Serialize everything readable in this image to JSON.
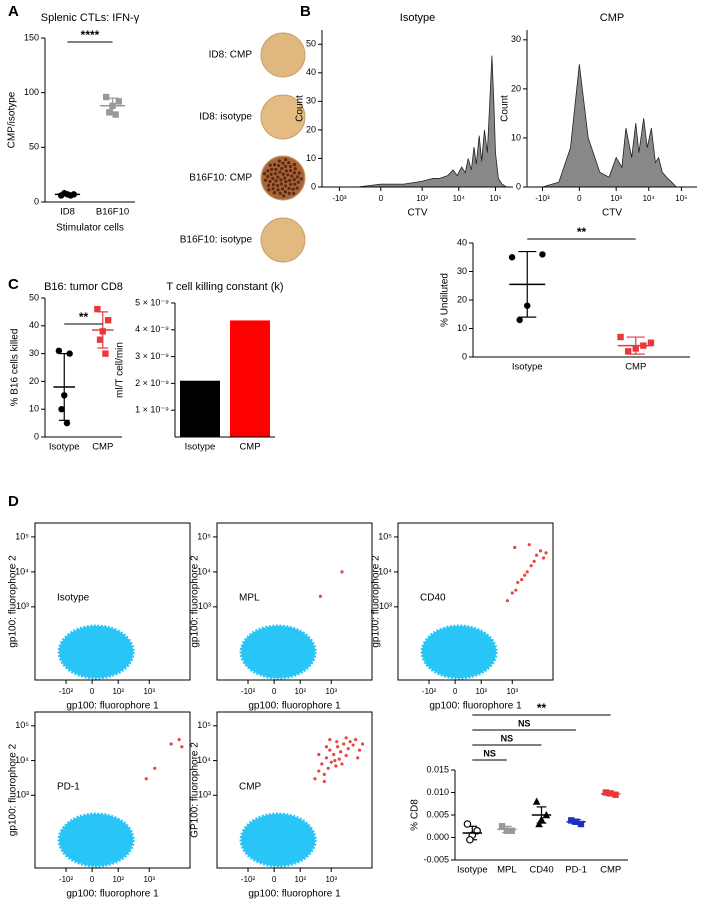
{
  "panel_labels": [
    "A",
    "B",
    "C",
    "D"
  ],
  "wells": [
    "ID8: CMP",
    "ID8: isotype",
    "B16F10: CMP",
    "B16F10: isotype"
  ],
  "chart_data": [
    {
      "type": "strip",
      "title": "Splenic CTLs: IFN-γ",
      "ylabel": "CMP/isotype",
      "xlabel": "Stimulator cells",
      "categories": [
        "ID8",
        "B16F10"
      ],
      "groups": [
        {
          "values": [
            6,
            7,
            7,
            8,
            6
          ],
          "mean": 7,
          "sd": 1,
          "color": "#000000",
          "marker": "circle"
        },
        {
          "values": [
            96,
            92,
            88,
            82,
            80
          ],
          "mean": 88,
          "sd": 7,
          "color": "#999999",
          "marker": "square"
        }
      ],
      "ylim": [
        0,
        150
      ],
      "yticks": [
        0,
        50,
        100,
        150
      ],
      "annotations": [
        {
          "text": "****",
          "between": [
            "ID8",
            "B16F10"
          ]
        }
      ]
    },
    {
      "type": "area",
      "title": "Isotype",
      "ylabel": "Count",
      "xlabel": "CTV",
      "color": "#888888",
      "xscale": "asinh",
      "x": [
        -3000,
        -1000,
        -300,
        0,
        300,
        1000,
        2000,
        3000,
        5000,
        7000,
        9000,
        12000,
        15000,
        18000,
        22000,
        26000,
        30000,
        36000,
        42000,
        50000,
        60000,
        70000,
        80000,
        90000,
        100000,
        120000,
        150000,
        200000,
        300000
      ],
      "values": [
        0,
        0,
        0,
        1,
        1,
        2,
        3,
        3,
        4,
        6,
        4,
        7,
        5,
        10,
        6,
        14,
        8,
        18,
        9,
        20,
        12,
        30,
        46,
        30,
        12,
        3,
        1,
        0,
        0
      ],
      "xlim": [
        -3000,
        300000
      ],
      "xticks": [
        {
          "value": -1000,
          "label": "-10³"
        },
        0,
        {
          "value": 1000,
          "label": "10³"
        },
        {
          "value": 10000,
          "label": "10⁴"
        },
        {
          "value": 100000,
          "label": "10⁵"
        }
      ],
      "ylim": [
        0,
        55
      ],
      "yticks": [
        0,
        10,
        20,
        30,
        40,
        50
      ]
    },
    {
      "type": "area",
      "title": "CMP",
      "ylabel": "Count",
      "xlabel": "CTV",
      "color": "#888888",
      "xscale": "asinh",
      "x": [
        -3000,
        -1000,
        -300,
        -100,
        0,
        100,
        300,
        600,
        1000,
        1500,
        2000,
        3000,
        4000,
        5000,
        7000,
        9000,
        12000,
        16000,
        20000,
        26000,
        35000,
        50000,
        70000,
        100000,
        300000
      ],
      "values": [
        0,
        0,
        1,
        8,
        25,
        10,
        3,
        2,
        6,
        4,
        12,
        6,
        13,
        7,
        14,
        8,
        12,
        5,
        6,
        3,
        2,
        1,
        0,
        0,
        0
      ],
      "xlim": [
        -3000,
        300000
      ],
      "xticks": [
        {
          "value": -1000,
          "label": "-10³"
        },
        0,
        {
          "value": 1000,
          "label": "10³"
        },
        {
          "value": 10000,
          "label": "10⁴"
        },
        {
          "value": 100000,
          "label": "10⁵"
        }
      ],
      "ylim": [
        0,
        32
      ],
      "yticks": [
        0,
        10,
        20,
        30
      ]
    },
    {
      "type": "strip",
      "ylabel": "% Undiluted",
      "categories": [
        "Isotype",
        "CMP"
      ],
      "groups": [
        {
          "values": [
            35,
            36,
            18,
            13
          ],
          "mean": 25.5,
          "sd": 11.5,
          "color": "#000000",
          "marker": "circle"
        },
        {
          "values": [
            7,
            5,
            3,
            2,
            4
          ],
          "mean": 4,
          "sd": 3,
          "color": "#e8383d",
          "marker": "square"
        }
      ],
      "ylim": [
        0,
        40
      ],
      "yticks": [
        0,
        10,
        20,
        30,
        40
      ],
      "annotations": [
        {
          "text": "**",
          "between": [
            "Isotype",
            "CMP"
          ]
        }
      ]
    },
    {
      "type": "strip",
      "title": "B16: tumor CD8",
      "ylabel": "% B16 cells killed",
      "categories": [
        "Isotype",
        "CMP"
      ],
      "groups": [
        {
          "values": [
            31,
            30,
            15,
            10,
            5
          ],
          "mean": 18,
          "sd": 12,
          "color": "#000000",
          "marker": "circle"
        },
        {
          "values": [
            46,
            42,
            38,
            35,
            30
          ],
          "mean": 38.5,
          "sd": 6.5,
          "color": "#e8383d",
          "marker": "square"
        }
      ],
      "ylim": [
        0,
        50
      ],
      "yticks": [
        0,
        10,
        20,
        30,
        40,
        50
      ],
      "annotations": [
        {
          "text": "**",
          "between": [
            "Isotype",
            "CMP"
          ]
        }
      ]
    },
    {
      "type": "bar",
      "title": "T cell killing constant (k)",
      "ylabel": "ml/T cell/min",
      "categories": [
        "Isotype",
        "CMP"
      ],
      "values": [
        2.1e-09,
        4.35e-09
      ],
      "colors": [
        "#000000",
        "#ff0000"
      ],
      "ylim": [
        0,
        5e-09
      ],
      "yticks": [
        {
          "value": 1e-09,
          "label": "1 × 10⁻⁹"
        },
        {
          "value": 2e-09,
          "label": "2 × 10⁻⁹"
        },
        {
          "value": 3e-09,
          "label": "3 × 10⁻⁹"
        },
        {
          "value": 4e-09,
          "label": "4 × 10⁻⁹"
        },
        {
          "value": 5e-09,
          "label": "5 × 10⁻⁹"
        }
      ]
    },
    {
      "type": "scatter",
      "annotation": "Isotype",
      "xlabel": "gp100: fluorophore 1",
      "ylabel": "gp100: fluorophore 2",
      "x": [],
      "values": [],
      "color": "#e8473f",
      "population_color": "#29c5f6",
      "xscale": "asinh",
      "yscale": "asinh",
      "xlim": [
        -1000,
        20000
      ],
      "ylim": [
        -300,
        250000
      ],
      "xticks": [
        {
          "value": -100,
          "label": "-10²"
        },
        0,
        {
          "value": 100,
          "label": "10²"
        },
        {
          "value": 1000,
          "label": "10³"
        }
      ],
      "yticks": [
        {
          "value": 1000,
          "label": "10³"
        },
        {
          "value": 10000,
          "label": "10⁴"
        },
        {
          "value": 100000,
          "label": "10⁵"
        }
      ]
    },
    {
      "type": "scatter",
      "annotation": "MPL",
      "xlabel": "gp100: fluorophore 1",
      "ylabel": "gp100: fluorophore 2",
      "x": [
        450,
        2200
      ],
      "values": [
        2000,
        10000
      ],
      "color": "#e8473f",
      "population_color": "#29c5f6",
      "xscale": "asinh",
      "yscale": "asinh",
      "xlim": [
        -1000,
        20000
      ],
      "ylim": [
        -300,
        250000
      ],
      "xticks": [
        {
          "value": -100,
          "label": "-10²"
        },
        0,
        {
          "value": 100,
          "label": "10²"
        },
        {
          "value": 1000,
          "label": "10³"
        }
      ],
      "yticks": [
        {
          "value": 1000,
          "label": "10³"
        },
        {
          "value": 10000,
          "label": "10⁴"
        },
        {
          "value": 100000,
          "label": "10⁵"
        }
      ]
    },
    {
      "type": "scatter",
      "annotation": "CD40",
      "xlabel": "gp100: fluorophore 1",
      "ylabel": "gp100: fluorophore 2",
      "x": [
        700,
        1000,
        1300,
        1500,
        2000,
        2500,
        3000,
        4000,
        5000,
        6000,
        8000,
        10000,
        12000,
        1200,
        3500
      ],
      "values": [
        1500,
        2500,
        3000,
        5000,
        6000,
        8000,
        10000,
        15000,
        20000,
        30000,
        40000,
        25000,
        35000,
        50000,
        60000
      ],
      "color": "#e8473f",
      "population_color": "#29c5f6",
      "xscale": "asinh",
      "yscale": "asinh",
      "xlim": [
        -1000,
        20000
      ],
      "ylim": [
        -300,
        250000
      ],
      "xticks": [
        {
          "value": -100,
          "label": "-10²"
        },
        0,
        {
          "value": 100,
          "label": "10²"
        },
        {
          "value": 1000,
          "label": "10³"
        }
      ],
      "yticks": [
        {
          "value": 1000,
          "label": "10³"
        },
        {
          "value": 10000,
          "label": "10⁴"
        },
        {
          "value": 100000,
          "label": "10⁵"
        }
      ]
    },
    {
      "type": "scatter",
      "annotation": "PD-1",
      "xlabel": "gp100: fluorophore 1",
      "ylabel": "gp100: fluorophore 2",
      "x": [
        800,
        1500,
        5000,
        9000,
        11000
      ],
      "values": [
        3000,
        6000,
        30000,
        40000,
        25000
      ],
      "color": "#e8473f",
      "population_color": "#29c5f6",
      "xscale": "asinh",
      "yscale": "asinh",
      "xlim": [
        -1000,
        20000
      ],
      "ylim": [
        -300,
        250000
      ],
      "xticks": [
        {
          "value": -100,
          "label": "-10²"
        },
        0,
        {
          "value": 100,
          "label": "10²"
        },
        {
          "value": 1000,
          "label": "10³"
        }
      ],
      "yticks": [
        {
          "value": 1000,
          "label": "10³"
        },
        {
          "value": 10000,
          "label": "10⁴"
        },
        {
          "value": 100000,
          "label": "10⁵"
        }
      ]
    },
    {
      "type": "scatter",
      "annotation": "CMP",
      "xlabel": "gp100: fluorophore 1",
      "ylabel": "GP100: fluorophore 2",
      "x": [
        300,
        400,
        500,
        600,
        700,
        800,
        900,
        1000,
        1200,
        1400,
        1600,
        1800,
        2000,
        2500,
        3000,
        3500,
        4000,
        5000,
        6000,
        8000,
        10000,
        400,
        600,
        900,
        1300,
        2200,
        3000,
        700,
        1500,
        7000
      ],
      "values": [
        3000,
        5000,
        8000,
        4000,
        12000,
        6000,
        20000,
        9000,
        15000,
        7000,
        25000,
        11000,
        18000,
        30000,
        14000,
        22000,
        35000,
        28000,
        40000,
        20000,
        30000,
        15000,
        2500,
        40000,
        10000,
        8000,
        45000,
        25000,
        35000,
        12000
      ],
      "color": "#e8473f",
      "population_color": "#29c5f6",
      "xscale": "asinh",
      "yscale": "asinh",
      "xlim": [
        -1000,
        20000
      ],
      "ylim": [
        -300,
        250000
      ],
      "xticks": [
        {
          "value": -100,
          "label": "-10²"
        },
        0,
        {
          "value": 100,
          "label": "10²"
        },
        {
          "value": 1000,
          "label": "10³"
        }
      ],
      "yticks": [
        {
          "value": 1000,
          "label": "10³"
        },
        {
          "value": 10000,
          "label": "10⁴"
        },
        {
          "value": 100000,
          "label": "10⁵"
        }
      ]
    },
    {
      "type": "strip",
      "ylabel": "% CD8",
      "categories": [
        "Isotype",
        "MPL",
        "CD40",
        "PD-1",
        "CMP"
      ],
      "groups": [
        {
          "values": [
            0.003,
            0.0015,
            0.0005,
            -0.0005
          ],
          "mean": 0.001,
          "sd": 0.0015,
          "color": "#000000",
          "marker": "open-circle"
        },
        {
          "values": [
            0.0025,
            0.0015,
            0.0015
          ],
          "mean": 0.0018,
          "sd": 0.0007,
          "color": "#999999",
          "marker": "square"
        },
        {
          "values": [
            0.008,
            0.005,
            0.004,
            0.003
          ],
          "mean": 0.005,
          "sd": 0.0018,
          "color": "#000000",
          "marker": "triangle"
        },
        {
          "values": [
            0.0038,
            0.003,
            0.0035
          ],
          "mean": 0.0035,
          "sd": 0.0005,
          "color": "#1f2fbf",
          "marker": "square"
        },
        {
          "values": [
            0.01,
            0.0095,
            0.0098
          ],
          "mean": 0.0097,
          "sd": 0.0004,
          "color": "#e8383d",
          "marker": "square"
        }
      ],
      "ylim": [
        -0.005,
        0.015
      ],
      "yticks": [
        -0.005,
        {
          "value": 0,
          "label": "0.000"
        },
        0.005,
        {
          "value": 0.01,
          "label": "0.010"
        },
        0.015
      ],
      "annotations": [
        {
          "text": "NS",
          "between": [
            "Isotype",
            "MPL"
          ]
        },
        {
          "text": "NS",
          "between": [
            "Isotype",
            "CD40"
          ]
        },
        {
          "text": "NS",
          "between": [
            "Isotype",
            "PD-1"
          ]
        },
        {
          "text": "**",
          "between": [
            "Isotype",
            "CMP"
          ]
        }
      ]
    }
  ]
}
